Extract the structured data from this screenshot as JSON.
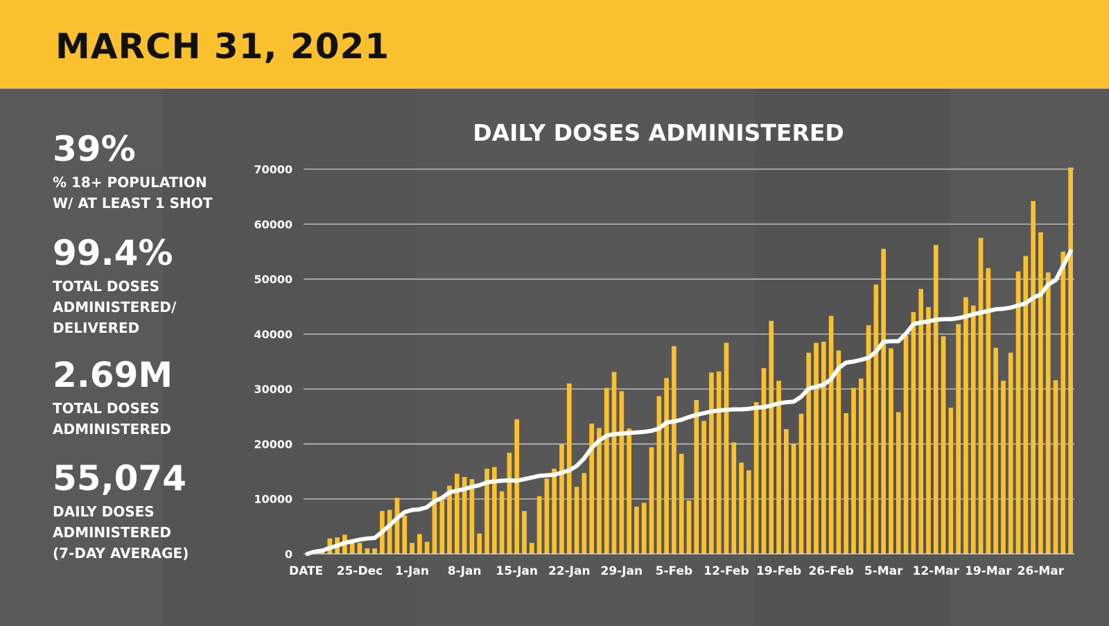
{
  "header": {
    "title": "MARCH 31, 2021"
  },
  "stats": [
    {
      "value": "39%",
      "label": "% 18+ POPULATION\nW/ AT LEAST 1 SHOT"
    },
    {
      "value": "99.4%",
      "label": "TOTAL DOSES\nADMINISTERED/\nDELIVERED"
    },
    {
      "value": "2.69M",
      "label": "TOTAL DOSES\nADMINISTERED"
    },
    {
      "value": "55,074",
      "label": "DAILY DOSES\nADMINISTERED\n(7-DAY AVERAGE)"
    }
  ],
  "colors": {
    "header": "#fbc02d",
    "bar": "#fbc02d",
    "line": "#ffffff",
    "background": "#565656",
    "grid": "#cfcfcf"
  },
  "chart_data": {
    "type": "bar",
    "title": "DAILY DOSES ADMINISTERED",
    "x_axis_label": "DATE",
    "x_tick_labels": [
      "25-Dec",
      "1-Jan",
      "8-Jan",
      "15-Jan",
      "22-Jan",
      "29-Jan",
      "5-Feb",
      "12-Feb",
      "19-Feb",
      "26-Feb",
      "5-Mar",
      "12-Mar",
      "19-Mar",
      "26-Mar"
    ],
    "ylim": [
      0,
      70000
    ],
    "y_ticks": [
      0,
      10000,
      20000,
      30000,
      40000,
      50000,
      60000,
      70000
    ],
    "grid": true,
    "series": [
      {
        "type": "bar",
        "values": [
          0,
          0,
          300,
          2800,
          3000,
          3500,
          2500,
          2000,
          1000,
          1000,
          7800,
          8000,
          10200,
          7000,
          2000,
          3600,
          2200,
          11400,
          9800,
          12400,
          14600,
          14000,
          13600,
          3700,
          15500,
          15800,
          11400,
          18400,
          24500,
          7800,
          2000,
          10500,
          13700,
          15500,
          19900,
          31000,
          12200,
          14700,
          23700,
          22900,
          30200,
          33100,
          29600,
          22800,
          8600,
          9300,
          19400,
          28700,
          32000,
          37800,
          18200,
          9700,
          28000,
          24200,
          33000,
          33200,
          38400,
          20300,
          16600,
          15200,
          27600,
          33800,
          42400,
          31500,
          22700,
          20000,
          25500,
          36600,
          38400,
          38600,
          43300,
          37000,
          25600,
          30200,
          31900,
          41600,
          49000,
          55500,
          37400,
          25800,
          39700,
          44000,
          48200,
          44900,
          56200,
          39600,
          26600,
          41800,
          46700,
          45200,
          57500,
          52000,
          37500,
          31500,
          36600,
          51400,
          54200,
          64200,
          58500,
          51200,
          31600,
          55000,
          70300
        ]
      },
      {
        "type": "line",
        "values": [
          0,
          400,
          600,
          1100,
          1500,
          2000,
          2300,
          2600,
          2800,
          2900,
          4000,
          5200,
          6500,
          7600,
          8000,
          8100,
          8500,
          9600,
          10200,
          11200,
          11500,
          11800,
          12200,
          12500,
          13000,
          13200,
          13300,
          13400,
          13300,
          13600,
          13900,
          14200,
          14300,
          14400,
          14800,
          15200,
          16000,
          17400,
          19300,
          20600,
          21500,
          21800,
          21900,
          22000,
          22100,
          22200,
          22400,
          22800,
          23900,
          24100,
          24400,
          24900,
          25300,
          25600,
          25900,
          26100,
          26200,
          26300,
          26300,
          26400,
          26600,
          26700,
          27000,
          27400,
          27600,
          27700,
          28600,
          30100,
          30400,
          30800,
          31800,
          33800,
          34800,
          35000,
          35300,
          35700,
          36800,
          38600,
          38700,
          38700,
          40100,
          41800,
          42100,
          42300,
          42600,
          42700,
          42700,
          42900,
          43200,
          43600,
          43900,
          44200,
          44500,
          44600,
          44800,
          45200,
          45600,
          46600,
          47200,
          49000,
          49800,
          52400,
          55074
        ]
      }
    ]
  }
}
